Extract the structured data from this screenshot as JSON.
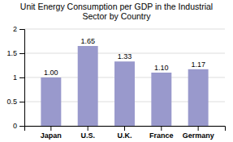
{
  "chart_data": {
    "type": "bar",
    "title": "Unit Energy Consumption per GDP in the Industrial\nSector by Country",
    "categories": [
      "Japan",
      "U.S.",
      "U.K.",
      "France",
      "Germany"
    ],
    "values": [
      1.0,
      1.65,
      1.33,
      1.1,
      1.17
    ],
    "value_labels": [
      "1.00",
      "1.65",
      "1.33",
      "1.10",
      "1.17"
    ],
    "data_labels": true,
    "color": "#9999CC",
    "ylim": [
      0,
      2.0
    ],
    "yticks": [
      0,
      0.5,
      1,
      1.5,
      2
    ],
    "grid": true
  }
}
